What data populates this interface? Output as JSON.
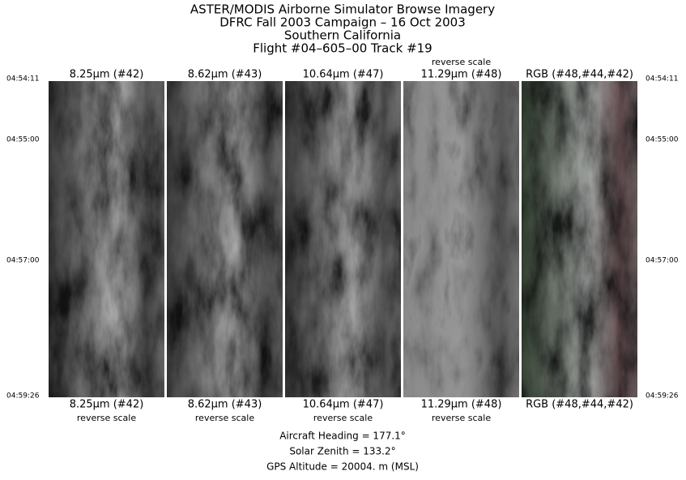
{
  "header": {
    "lines": [
      "ASTER/MODIS Airborne Simulator Browse Imagery",
      "DFRC Fall 2003 Campaign – 16 Oct 2003",
      "Southern California",
      "Flight #04–605–00 Track #19"
    ]
  },
  "panels": [
    {
      "top_label": "8.25μm (#42)",
      "bottom_label": "8.25μm (#42)",
      "bottom_note": "reverse scale"
    },
    {
      "top_label": "8.62μm (#43)",
      "bottom_label": "8.62μm (#43)",
      "bottom_note": "reverse scale"
    },
    {
      "top_label": "10.64μm (#47)",
      "bottom_label": "10.64μm (#47)",
      "bottom_note": "reverse scale"
    },
    {
      "top_note": "reverse scale",
      "top_label": "11.29μm (#48)",
      "bottom_label": "11.29μm (#48)",
      "bottom_note": "reverse scale"
    },
    {
      "top_label": "RGB (#48,#44,#42)",
      "bottom_label": "RGB (#48,#44,#42)"
    }
  ],
  "times": {
    "left": [
      "04:54:11",
      "04:55:00",
      "04:57:00",
      "04:59:26"
    ],
    "right": [
      "04:54:11",
      "04:55:00",
      "04:57:00",
      "04:59:26"
    ]
  },
  "footer": {
    "lines": [
      "Aircraft Heading =  177.1°",
      "Solar Zenith =  133.2°",
      "GPS Altitude =  20004. m (MSL)"
    ]
  }
}
